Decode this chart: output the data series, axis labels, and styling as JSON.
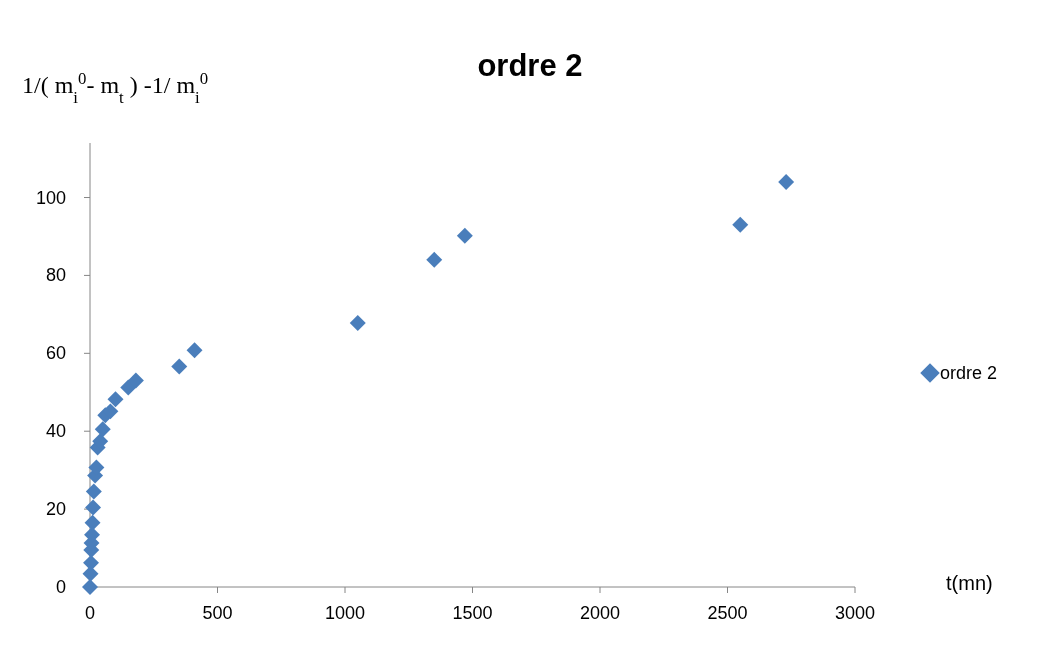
{
  "chart_data": {
    "type": "scatter",
    "title": "ordre 2",
    "xlabel": "t(mn)",
    "ylabel": "1/( m$_{i}$$^{0}$- m$_{t}$  ) -1/ m$_{i}$$^{0}$",
    "xlim": [
      0,
      3000
    ],
    "xticks": [
      0,
      500,
      1000,
      1500,
      2000,
      2500,
      3000
    ],
    "ylim": [
      0,
      114
    ],
    "yticks": [
      0,
      20,
      40,
      60,
      80,
      100
    ],
    "grid": false,
    "legend": "right",
    "marker": "diamond",
    "series": [
      {
        "name": "ordre 2",
        "color": "#4a7ebb",
        "x": [
          0,
          2,
          4,
          5,
          6,
          8,
          10,
          12,
          15,
          20,
          25,
          30,
          40,
          50,
          60,
          80,
          100,
          150,
          180,
          350,
          410,
          1050,
          1350,
          1470,
          2550,
          2730
        ],
        "values": [
          0,
          3.4,
          6.2,
          9.5,
          11.3,
          13.4,
          16.5,
          20.4,
          24.5,
          28.6,
          30.7,
          35.8,
          37.4,
          40.5,
          44.1,
          45.1,
          48.2,
          51.2,
          53,
          56.6,
          60.8,
          67.8,
          84,
          90.2,
          93,
          104
        ]
      }
    ]
  }
}
